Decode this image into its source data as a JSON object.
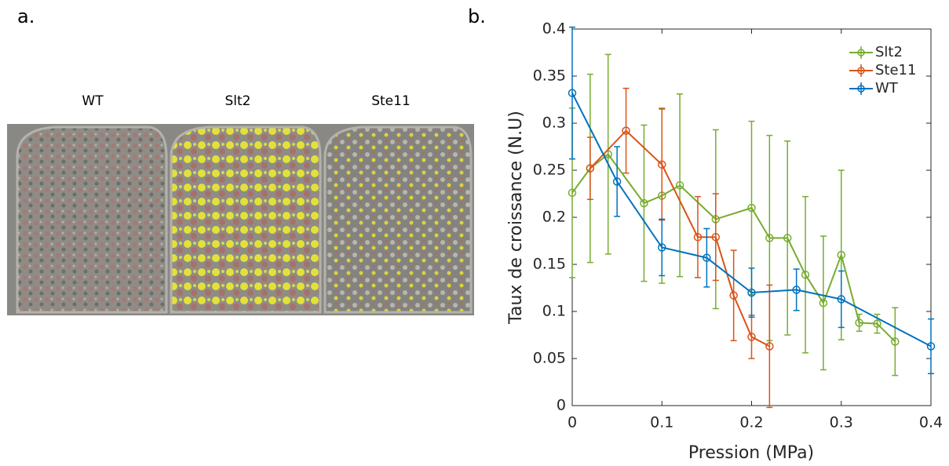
{
  "panel_labels": [
    "a.",
    "b."
  ],
  "image_labels": [
    "WT",
    "Slt2",
    "Ste11"
  ],
  "chart_data": {
    "type": "line",
    "xlabel": "Pression (MPa)",
    "ylabel": "Taux de croissance (N.U)",
    "xlim": [
      0,
      0.4
    ],
    "ylim": [
      0,
      0.4
    ],
    "xticks": [
      0,
      0.1,
      0.2,
      0.3,
      0.4
    ],
    "yticks": [
      0,
      0.05,
      0.1,
      0.15,
      0.2,
      0.25,
      0.3,
      0.35,
      0.4
    ],
    "legend": "northeast",
    "box": true,
    "series": [
      {
        "name": "Slt2",
        "color": "#77ac30",
        "x": [
          0,
          0.02,
          0.04,
          0.08,
          0.1,
          0.12,
          0.16,
          0.2,
          0.22,
          0.24,
          0.26,
          0.28,
          0.3,
          0.32,
          0.34,
          0.36
        ],
        "values": [
          0.226,
          0.252,
          0.267,
          0.215,
          0.223,
          0.234,
          0.198,
          0.21,
          0.178,
          0.178,
          0.139,
          0.109,
          0.16,
          0.088,
          0.087,
          0.068
        ],
        "errors": [
          0.09,
          0.1,
          0.106,
          0.083,
          0.093,
          0.097,
          0.095,
          0.092,
          0.109,
          0.103,
          0.083,
          0.071,
          0.09,
          0.009,
          0.01,
          0.036
        ]
      },
      {
        "name": "Ste11",
        "color": "#d95319",
        "x": [
          0.02,
          0.06,
          0.1,
          0.14,
          0.16,
          0.18,
          0.2,
          0.22
        ],
        "values": [
          0.252,
          0.292,
          0.256,
          0.179,
          0.179,
          0.117,
          0.073,
          0.063
        ],
        "errors": [
          0.033,
          0.045,
          0.059,
          0.043,
          0.046,
          0.048,
          0.023,
          0.065
        ]
      },
      {
        "name": "WT",
        "color": "#0072bd",
        "x": [
          0,
          0.05,
          0.1,
          0.15,
          0.2,
          0.25,
          0.3,
          0.4
        ],
        "values": [
          0.332,
          0.238,
          0.168,
          0.157,
          0.12,
          0.123,
          0.113,
          0.063
        ],
        "errors": [
          0.07,
          0.037,
          0.03,
          0.031,
          0.026,
          0.022,
          0.03,
          0.029
        ]
      }
    ]
  }
}
